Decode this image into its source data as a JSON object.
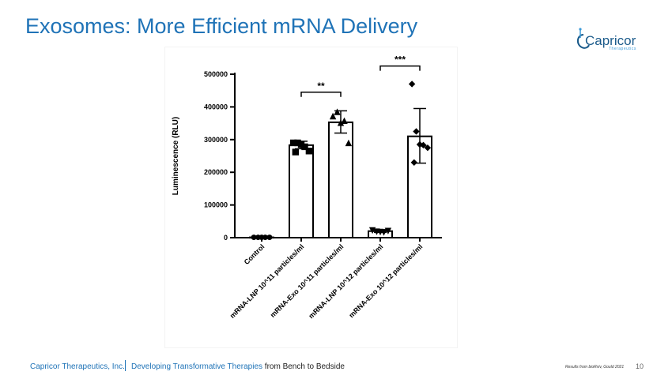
{
  "slide": {
    "title": "Exosomes: More Efficient mRNA Delivery",
    "logo_text": "Capricor",
    "logo_sub": "Therapeutics",
    "footer_company": "Capricor Therapeutics, Inc.",
    "footer_tagline_blue": "Developing Transformative Therapies",
    "footer_tagline_dark": "from Bench to Bedside",
    "source_note": "Results from bioRxiv, Gould 2021",
    "page_number": "10"
  },
  "colors": {
    "title_blue": "#1f73b7",
    "ink": "#000000"
  },
  "chart_data": {
    "type": "bar",
    "title": "",
    "xlabel": "",
    "ylabel": "Luminescence (RLU)",
    "ylim": [
      0,
      500000
    ],
    "yticks": [
      0,
      100000,
      200000,
      300000,
      400000,
      500000
    ],
    "ytick_labels": [
      "0",
      "100000",
      "200000",
      "300000",
      "400000",
      "500000"
    ],
    "categories": [
      "Control",
      "mRNA-LNP 10^11 particles/ml",
      "mRNA-Exo 10^11 particles/ml",
      "mRNA-LNP 10^12 particles/ml",
      "mRNA-Exo 10^12 particles/ml"
    ],
    "values": [
      1000,
      283000,
      353000,
      20000,
      310000
    ],
    "error_high": [
      1000,
      295000,
      388000,
      24000,
      395000
    ],
    "error_low": [
      1000,
      272000,
      320000,
      16000,
      228000
    ],
    "markers": [
      "circle",
      "square",
      "triangle",
      "triangle-down",
      "diamond"
    ],
    "points": [
      [
        1000,
        1000,
        1000,
        1000,
        1000
      ],
      [
        290000,
        290000,
        285000,
        278000,
        265000,
        262000
      ],
      [
        372000,
        385000,
        352000,
        358000,
        290000
      ],
      [
        22000,
        18000,
        17000,
        16000,
        20000
      ],
      [
        470000,
        325000,
        285000,
        283000,
        275000,
        230000
      ]
    ],
    "significance": [
      {
        "from": 1,
        "to": 2,
        "label": "**",
        "y": 445000
      },
      {
        "from": 3,
        "to": 4,
        "label": "***",
        "y": 525000
      }
    ]
  }
}
